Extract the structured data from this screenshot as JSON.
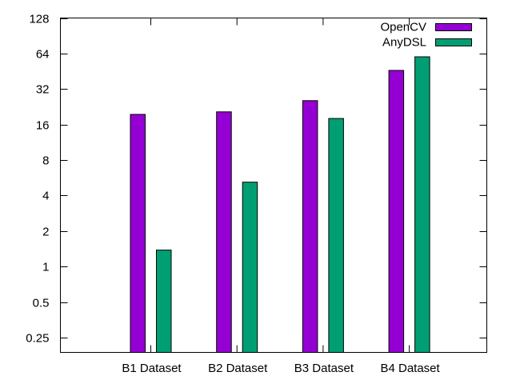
{
  "chart_data": {
    "type": "bar",
    "scale": "log2",
    "ylim": [
      0.1875,
      128
    ],
    "yticks": [
      {
        "value": 0.25,
        "label": "0.25"
      },
      {
        "value": 0.5,
        "label": "0.5"
      },
      {
        "value": 1,
        "label": "1"
      },
      {
        "value": 2,
        "label": "2"
      },
      {
        "value": 4,
        "label": "4"
      },
      {
        "value": 8,
        "label": "8"
      },
      {
        "value": 16,
        "label": "16"
      },
      {
        "value": 32,
        "label": "32"
      },
      {
        "value": 64,
        "label": "64"
      },
      {
        "value": 128,
        "label": "128"
      }
    ],
    "categories": [
      "B1 Dataset",
      "B2 Dataset",
      "B3 Dataset",
      "B4 Dataset"
    ],
    "series": [
      {
        "name": "OpenCV",
        "color": "#9400d3",
        "values": [
          19.5,
          20.5,
          25.5,
          46
        ]
      },
      {
        "name": "AnyDSL",
        "color": "#009e73",
        "values": [
          1.38,
          5.2,
          18,
          60
        ]
      }
    ],
    "legend_position": "top-right",
    "grid": false
  }
}
